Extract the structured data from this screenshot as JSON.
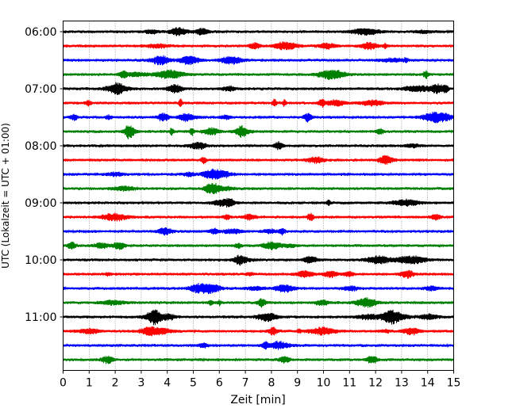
{
  "chart_data": {
    "type": "line",
    "title": "",
    "xlabel": "Zeit  [min]",
    "ylabel": "UTC (Lokalzeit = UTC + 01:00)",
    "xlim": [
      0,
      15
    ],
    "x_ticks": [
      "0",
      "1",
      "2",
      "3",
      "4",
      "5",
      "6",
      "7",
      "8",
      "9",
      "10",
      "11",
      "12",
      "13",
      "14",
      "15"
    ],
    "y_tick_labels": [
      "06:00",
      "07:00",
      "08:00",
      "09:00",
      "10:00",
      "11:00"
    ],
    "grid": "vertical dotted lines at each minute",
    "traces_per_hour": 4,
    "minutes_per_trace": 15,
    "trace_colors": [
      "#000000",
      "#ff0000",
      "#0000ff",
      "#008000"
    ],
    "trace_start_times": [
      "06:00",
      "06:15",
      "06:30",
      "06:45",
      "07:00",
      "07:15",
      "07:30",
      "07:45",
      "08:00",
      "08:15",
      "08:30",
      "08:45",
      "09:00",
      "09:15",
      "09:30",
      "09:45",
      "10:00",
      "10:15",
      "10:30",
      "10:45",
      "11:00",
      "11:15",
      "11:30",
      "11:45"
    ]
  }
}
